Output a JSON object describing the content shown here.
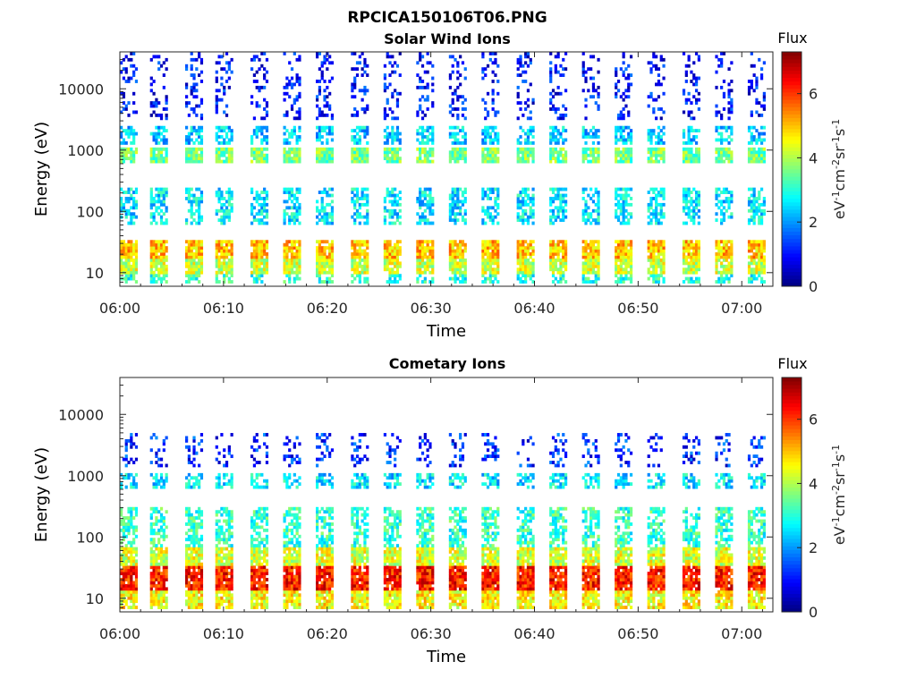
{
  "figure": {
    "title": "RPCICA150106T06.PNG"
  },
  "colormap": {
    "name": "jet",
    "stops": [
      "#00007f",
      "#0000ff",
      "#007fff",
      "#00ffff",
      "#7fff7f",
      "#ffff00",
      "#ff7f00",
      "#ff0000",
      "#7f0000"
    ]
  },
  "chart_data": [
    {
      "type": "heatmap",
      "title": "Solar Wind Ions",
      "xlabel": "Time",
      "ylabel": "Energy (eV)",
      "x_range": [
        "06:00",
        "07:03"
      ],
      "x_ticks": [
        "06:00",
        "06:10",
        "06:20",
        "06:30",
        "06:40",
        "06:50",
        "07:00"
      ],
      "y_scale": "log",
      "y_range": [
        6,
        40000
      ],
      "y_ticks": [
        "10",
        "100",
        "1000",
        "10000"
      ],
      "y_tick_values": [
        10,
        100,
        1000,
        10000
      ],
      "colorbar": {
        "label": "Flux",
        "unit_label": "eV-1cm-2sr-1s-1",
        "range": [
          0,
          7.3
        ],
        "ticks": [
          "0",
          "2",
          "4",
          "6"
        ],
        "tick_values": [
          0,
          2,
          4,
          6
        ]
      },
      "cycle_start_min": [
        0,
        3,
        6.3,
        9.3,
        12.5,
        15.8,
        19,
        22.2,
        25.5,
        28.5,
        31.8,
        35,
        38.2,
        41.5,
        44.6,
        47.8,
        51,
        54.2,
        57.4,
        60.5
      ],
      "bands": [
        {
          "e_min": 18,
          "e_max": 35,
          "flux": 5.0
        },
        {
          "e_min": 10,
          "e_max": 18,
          "flux": 4.2
        },
        {
          "e_min": 7,
          "e_max": 10,
          "flux": 3.0
        },
        {
          "e_min": 60,
          "e_max": 250,
          "flux": 2.6
        },
        {
          "e_min": 600,
          "e_max": 1100,
          "flux": 3.6
        },
        {
          "e_min": 1200,
          "e_max": 2500,
          "flux": 2.4
        },
        {
          "e_min": 3000,
          "e_max": 40000,
          "flux": 1.0
        }
      ]
    },
    {
      "type": "heatmap",
      "title": "Cometary Ions",
      "xlabel": "Time",
      "ylabel": "Energy (eV)",
      "x_range": [
        "06:00",
        "07:03"
      ],
      "x_ticks": [
        "06:00",
        "06:10",
        "06:20",
        "06:30",
        "06:40",
        "06:50",
        "07:00"
      ],
      "y_scale": "log",
      "y_range": [
        6,
        40000
      ],
      "y_ticks": [
        "10",
        "100",
        "1000",
        "10000"
      ],
      "y_tick_values": [
        10,
        100,
        1000,
        10000
      ],
      "colorbar": {
        "label": "Flux",
        "unit_label": "eV-1cm-2sr-1s-1",
        "range": [
          0,
          7.3
        ],
        "ticks": [
          "0",
          "2",
          "4",
          "6"
        ],
        "tick_values": [
          0,
          2,
          4,
          6
        ]
      },
      "cycle_start_min": [
        0,
        3,
        6.3,
        9.3,
        12.5,
        15.8,
        19,
        22.2,
        25.5,
        28.5,
        31.8,
        35,
        38.2,
        41.5,
        44.6,
        47.8,
        51,
        54.2,
        57.4,
        60.5
      ],
      "bands": [
        {
          "e_min": 14,
          "e_max": 35,
          "flux": 6.2
        },
        {
          "e_min": 7,
          "e_max": 14,
          "flux": 4.6
        },
        {
          "e_min": 35,
          "e_max": 70,
          "flux": 4.3
        },
        {
          "e_min": 70,
          "e_max": 300,
          "flux": 3.1
        },
        {
          "e_min": 600,
          "e_max": 1100,
          "flux": 2.6
        },
        {
          "e_min": 1400,
          "e_max": 5000,
          "flux": 1.2
        }
      ]
    }
  ]
}
